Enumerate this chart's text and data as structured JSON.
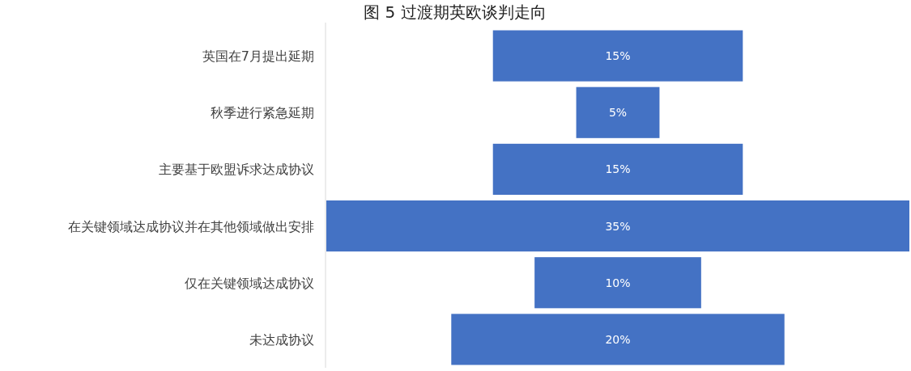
{
  "chart_data": {
    "type": "other",
    "title": "图 5 过渡期英欧谈判走向",
    "categories": [
      "英国在7月提出延期",
      "秋季进行紧急延期",
      "主要基于欧盟诉求达成协议",
      "在关键领域达成协议并在其他领域做出安排",
      "仅在关键领域达成协议",
      "未达成协议"
    ],
    "values": [
      15,
      5,
      15,
      35,
      10,
      20
    ],
    "value_labels": [
      "15%",
      "5%",
      "15%",
      "35%",
      "10%",
      "20%"
    ],
    "color": "#4472c4"
  }
}
